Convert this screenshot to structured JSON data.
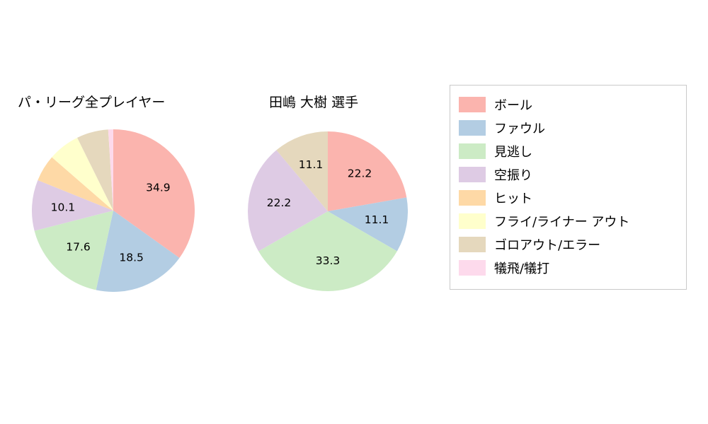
{
  "page": {
    "background": "#ffffff"
  },
  "chart_data": [
    {
      "type": "pie",
      "title": "パ・リーグ全プレイヤー",
      "start_angle_deg": 0,
      "direction": "clockwise",
      "label_radius_ratio": 0.62,
      "slices": [
        {
          "name": "ボール",
          "value": 34.9,
          "label": "34.9",
          "color": "#fbb4ae"
        },
        {
          "name": "ファウル",
          "value": 18.5,
          "label": "18.5",
          "color": "#b3cde3"
        },
        {
          "name": "見逃し",
          "value": 17.6,
          "label": "17.6",
          "color": "#ccebc5"
        },
        {
          "name": "空振り",
          "value": 10.1,
          "label": "10.1",
          "color": "#decbe4"
        },
        {
          "name": "ヒット",
          "value": 5.3,
          "label": "",
          "color": "#fed9a6"
        },
        {
          "name": "フライ/ライナー アウト",
          "value": 6.3,
          "label": "",
          "color": "#ffffcc"
        },
        {
          "name": "ゴロアウト/エラー",
          "value": 6.3,
          "label": "",
          "color": "#e5d8bd"
        },
        {
          "name": "犠飛/犠打",
          "value": 1.0,
          "label": "",
          "color": "#fddaec"
        }
      ]
    },
    {
      "type": "pie",
      "title": "田嶋 大樹  選手",
      "start_angle_deg": 0,
      "direction": "clockwise",
      "label_radius_ratio": 0.62,
      "slices": [
        {
          "name": "ボール",
          "value": 22.2,
          "label": "22.2",
          "color": "#fbb4ae"
        },
        {
          "name": "ファウル",
          "value": 11.1,
          "label": "11.1",
          "color": "#b3cde3"
        },
        {
          "name": "見逃し",
          "value": 33.3,
          "label": "33.3",
          "color": "#ccebc5"
        },
        {
          "name": "空振り",
          "value": 22.2,
          "label": "22.2",
          "color": "#decbe4"
        },
        {
          "name": "ゴロアウト/エラー",
          "value": 11.1,
          "label": "11.1",
          "color": "#e5d8bd"
        }
      ]
    }
  ],
  "legend": {
    "items": [
      {
        "label": "ボール",
        "color": "#fbb4ae"
      },
      {
        "label": "ファウル",
        "color": "#b3cde3"
      },
      {
        "label": "見逃し",
        "color": "#ccebc5"
      },
      {
        "label": "空振り",
        "color": "#decbe4"
      },
      {
        "label": "ヒット",
        "color": "#fed9a6"
      },
      {
        "label": "フライ/ライナー アウト",
        "color": "#ffffcc"
      },
      {
        "label": "ゴロアウト/エラー",
        "color": "#e5d8bd"
      },
      {
        "label": "犠飛/犠打",
        "color": "#fddaec"
      }
    ]
  }
}
